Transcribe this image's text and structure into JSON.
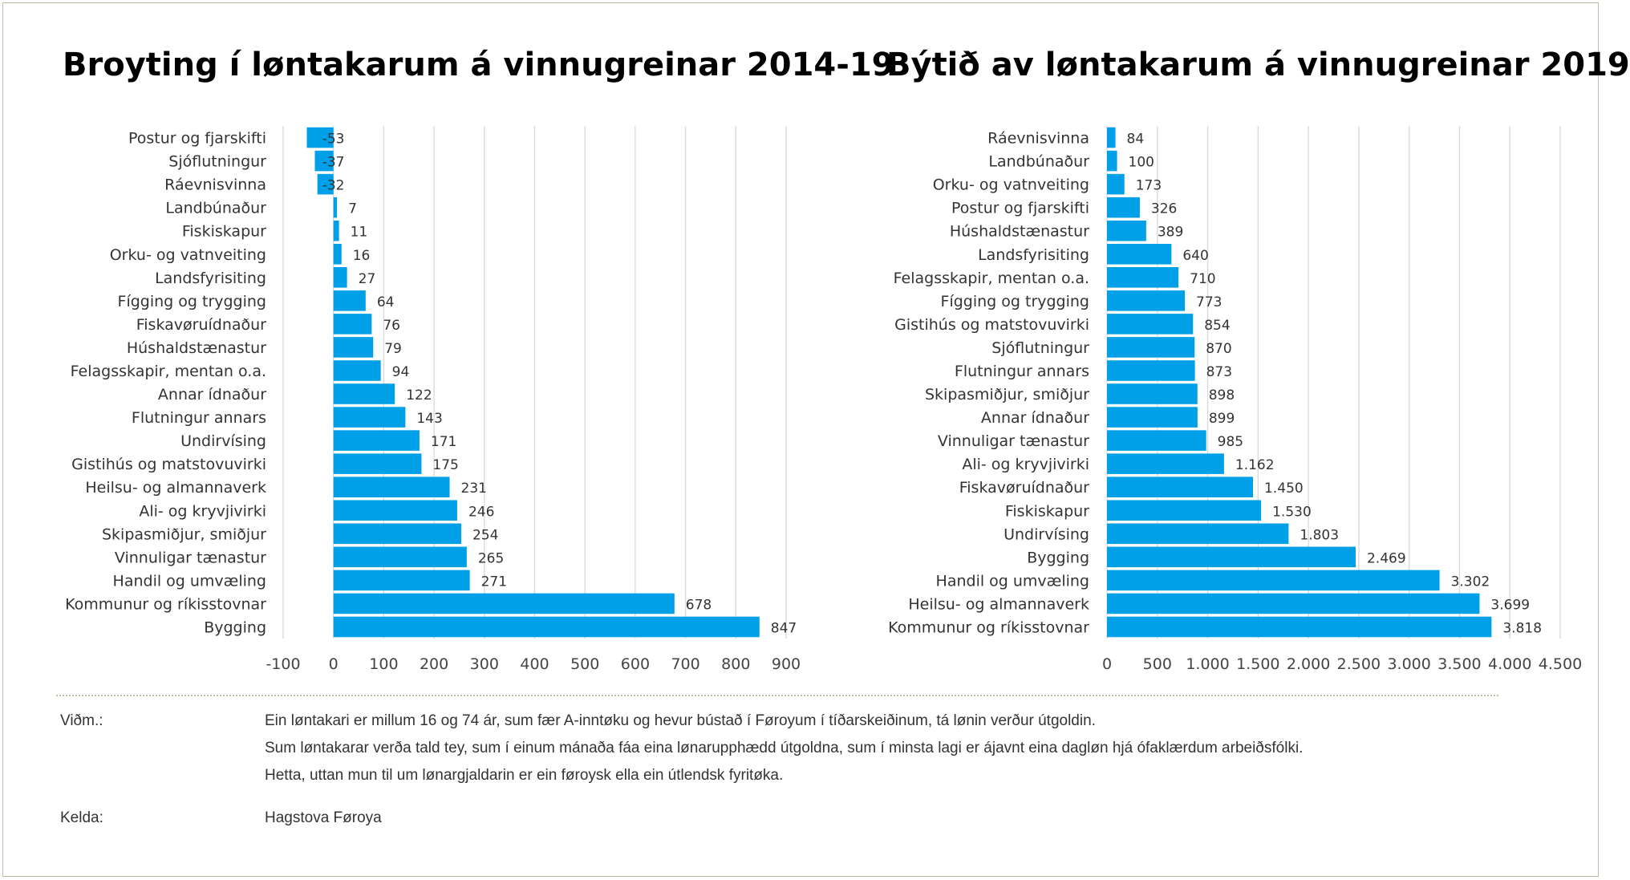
{
  "chart_data": [
    {
      "type": "bar",
      "orientation": "horizontal",
      "title": "Broyting í løntakarum á vinnugreinar 2014-19",
      "categories": [
        "Postur og fjarskifti",
        "Sjóflutningur",
        "Ráevnisvinna",
        "Landbúnaður",
        "Fiskiskapur",
        "Orku- og vatnveiting",
        "Landsfyrisiting",
        "Fígging og trygging",
        "Fiskavøruídnaður",
        "Húshaldstænastur",
        "Felagsskapir, mentan o.a.",
        "Annar ídnaður",
        "Flutningur annars",
        "Undirvísing",
        "Gistihús og matstovuvirki",
        "Heilsu- og almannaverk",
        "Ali- og kryvjivirki",
        "Skipasmiðjur, smiðjur",
        "Vinnuligar tænastur",
        "Handil og umvæling",
        "Kommunur og ríkisstovnar",
        "Bygging"
      ],
      "values": [
        -53,
        -37,
        -32,
        7,
        11,
        16,
        27,
        64,
        76,
        79,
        94,
        122,
        143,
        171,
        175,
        231,
        246,
        254,
        265,
        271,
        678,
        847
      ],
      "value_labels": [
        "-53",
        "-37",
        "-32",
        "7",
        "11",
        "16",
        "27",
        "64",
        "76",
        "79",
        "94",
        "122",
        "143",
        "171",
        "175",
        "231",
        "246",
        "254",
        "265",
        "271",
        "678",
        "847"
      ],
      "xlim": [
        -100,
        900
      ],
      "ticks": [
        -100,
        0,
        100,
        200,
        300,
        400,
        500,
        600,
        700,
        800,
        900
      ],
      "tick_labels": [
        "-100",
        "0",
        "100",
        "200",
        "300",
        "400",
        "500",
        "600",
        "700",
        "800",
        "900"
      ],
      "grid": true,
      "bar_color": "#00a0e9"
    },
    {
      "type": "bar",
      "orientation": "horizontal",
      "title": "Býtið av løntakarum á vinnugreinar 2019",
      "categories": [
        "Ráevnisvinna",
        "Landbúnaður",
        "Orku- og vatnveiting",
        "Postur og fjarskifti",
        "Húshaldstænastur",
        "Landsfyrisiting",
        "Felagsskapir, mentan o.a.",
        "Fígging og trygging",
        "Gistihús og matstovuvirki",
        "Sjóflutningur",
        "Flutningur annars",
        "Skipasmiðjur, smiðjur",
        "Annar ídnaður",
        "Vinnuligar tænastur",
        "Ali- og kryvjivirki",
        "Fiskavøruídnaður",
        "Fiskiskapur",
        "Undirvísing",
        "Bygging",
        "Handil og umvæling",
        "Heilsu- og almannaverk",
        "Kommunur og ríkisstovnar"
      ],
      "values": [
        84,
        100,
        173,
        326,
        389,
        640,
        710,
        773,
        854,
        870,
        873,
        898,
        899,
        985,
        1162,
        1450,
        1530,
        1803,
        2469,
        3302,
        3699,
        3818
      ],
      "value_labels": [
        "84",
        "100",
        "173",
        "326",
        "389",
        "640",
        "710",
        "773",
        "854",
        "870",
        "873",
        "898",
        "899",
        "985",
        "1.162",
        "1.450",
        "1.530",
        "1.803",
        "2.469",
        "3.302",
        "3.699",
        "3.818"
      ],
      "xlim": [
        0,
        4500
      ],
      "ticks": [
        0,
        500,
        1000,
        1500,
        2000,
        2500,
        3000,
        3500,
        4000,
        4500
      ],
      "tick_labels": [
        "0",
        "500",
        "1.000",
        "1.500",
        "2.000",
        "2.500",
        "3.000",
        "3.500",
        "4.000",
        "4.500"
      ],
      "grid": true,
      "bar_color": "#00a0e9"
    }
  ],
  "notes": {
    "vidm_label": "Viðm.:",
    "vidm_lines": [
      "Ein løntakari er millum 16 og 74 ár, sum fær A-inntøku og hevur bústað í Føroyum í tíðarskeiðinum, tá lønin verður útgoldin.",
      "Sum løntakarar verða tald tey, sum í einum mánaða fáa eina lønarupphædd útgoldna, sum í minsta lagi er ájavnt eina dagløn hjá ófaklærdum arbeiðsfólki.",
      "Hetta, uttan mun til um lønargjaldarin er ein føroysk ella ein útlendsk fyritøka."
    ],
    "kelda_label": "Kelda:",
    "kelda_value": "Hagstova Føroya"
  }
}
